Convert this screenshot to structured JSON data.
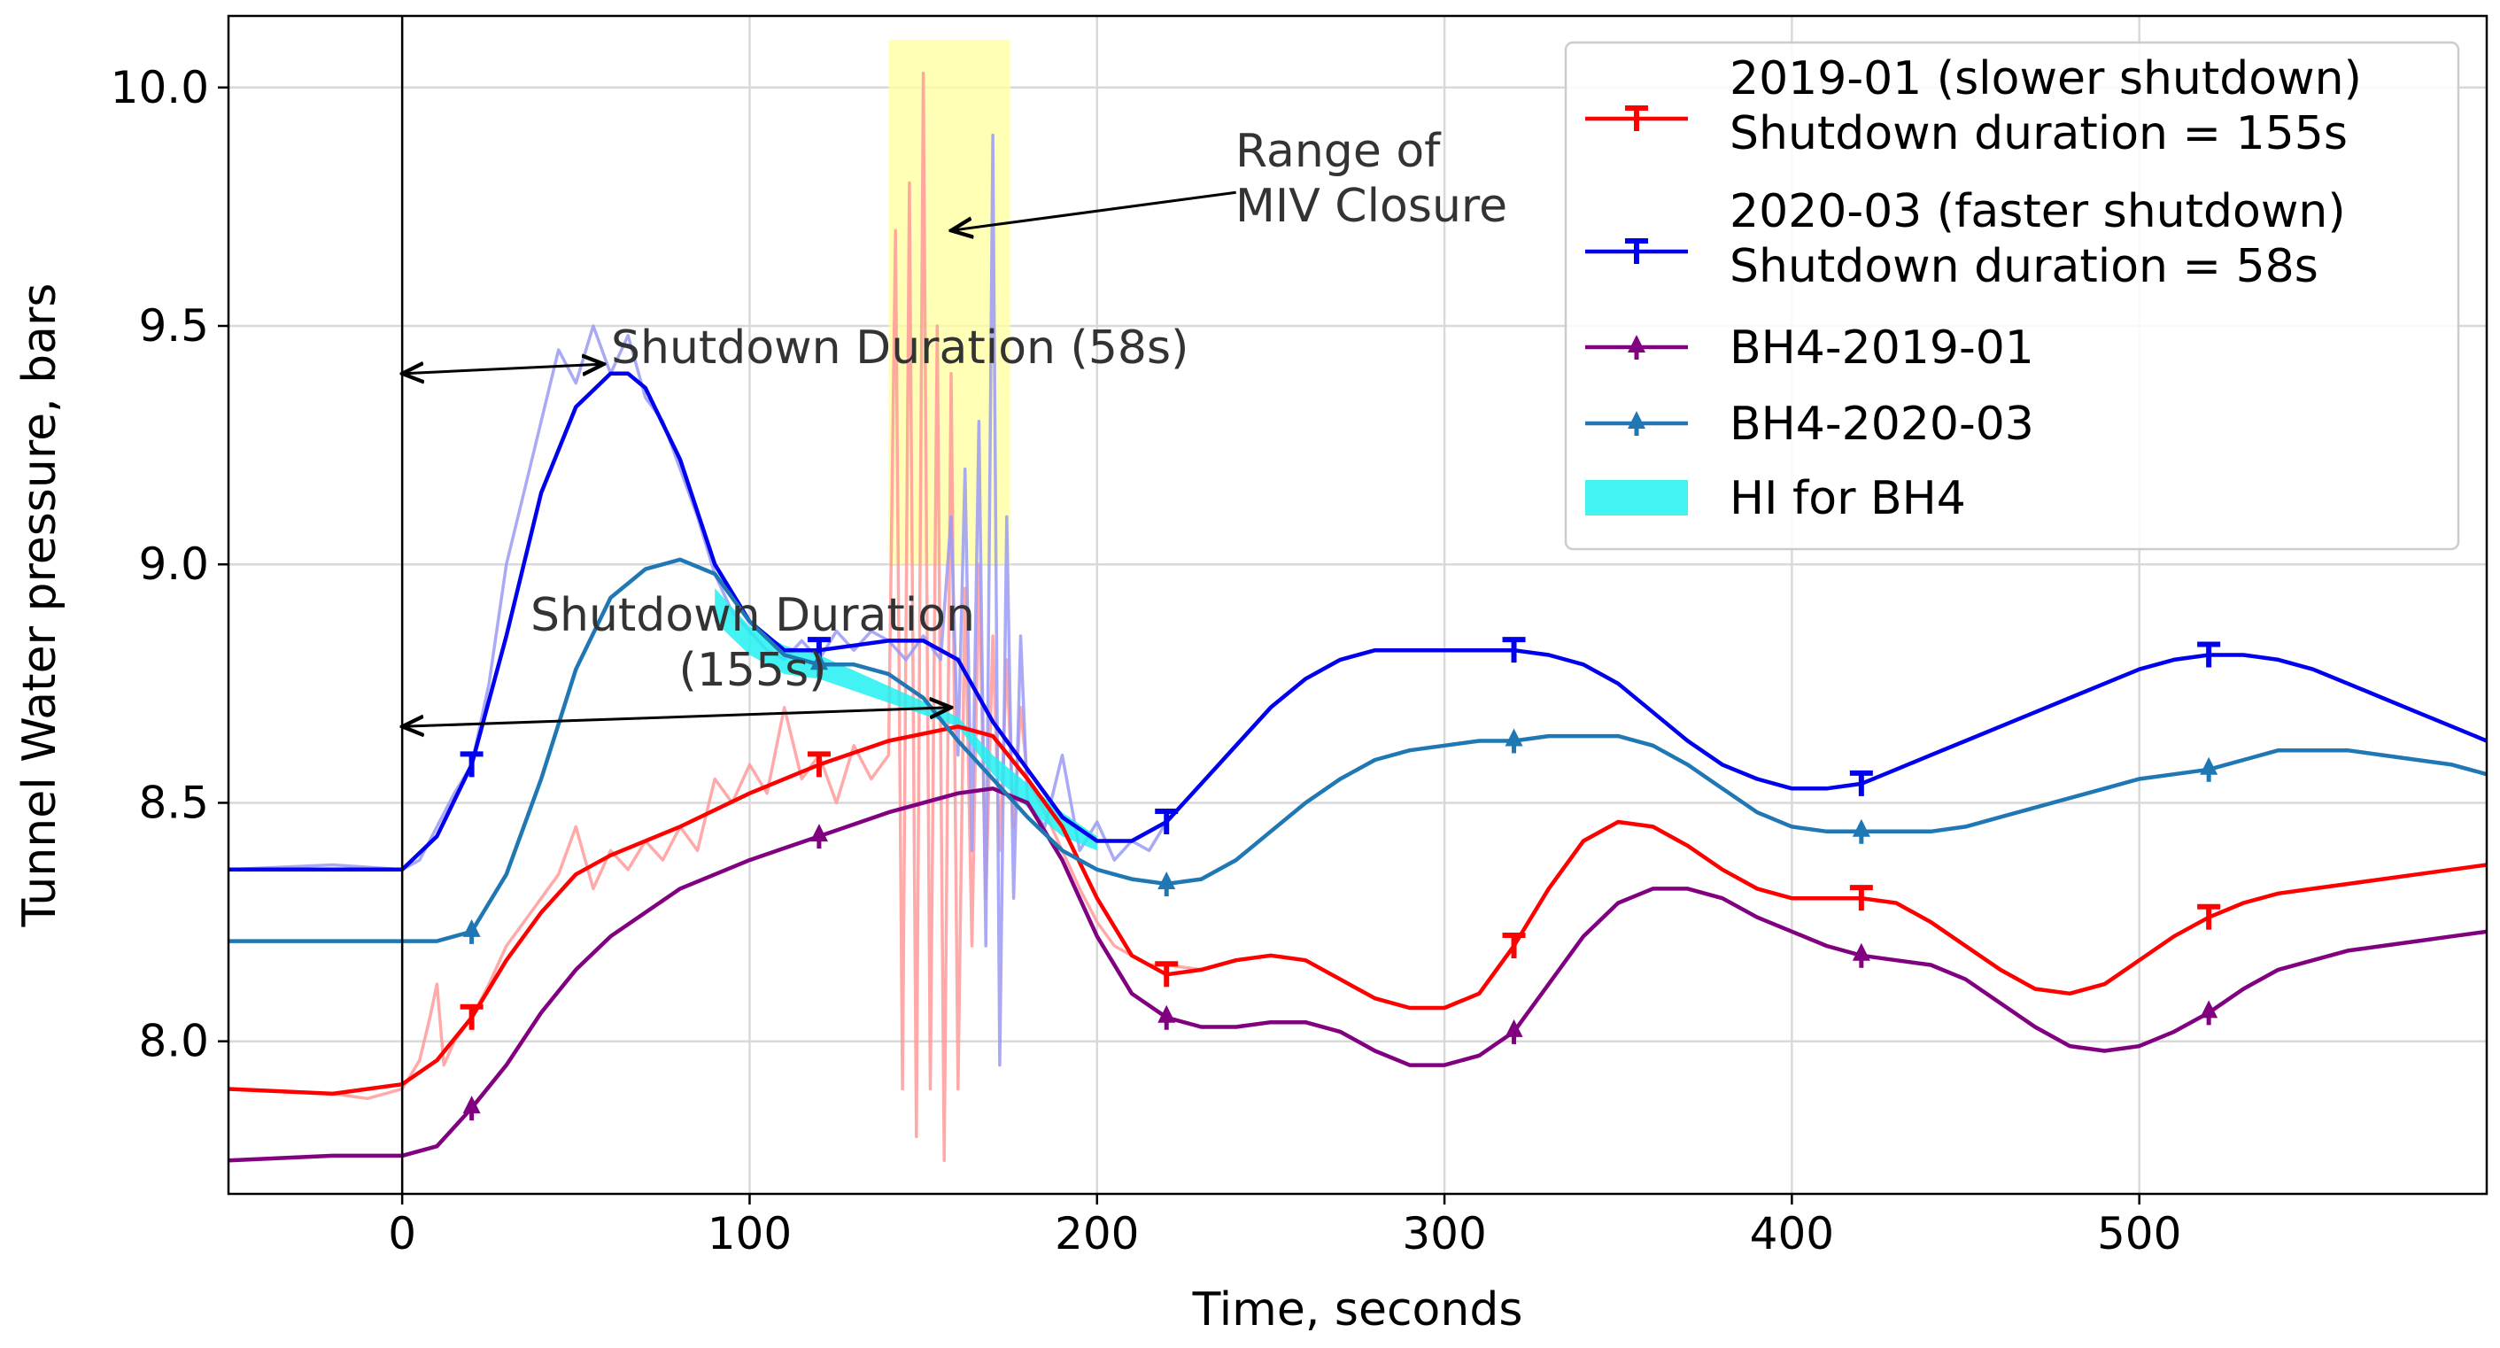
{
  "chart_data": {
    "type": "line",
    "xlabel": "Time, seconds",
    "ylabel": "Tunnel Water pressure, bars",
    "xlim": [
      -50,
      600
    ],
    "ylim": [
      7.68,
      10.15
    ],
    "x_ticks": [
      0,
      100,
      200,
      300,
      400,
      500
    ],
    "y_ticks": [
      8.0,
      8.5,
      9.0,
      9.5,
      10.0
    ],
    "y_tick_labels": [
      "8.0",
      "8.5",
      "9.0",
      "9.5",
      "10.0"
    ],
    "grid": true,
    "vertical_line_x": 0,
    "highlight_band": {
      "x": [
        140,
        175
      ],
      "y": [
        9.0,
        10.1
      ],
      "color": "#ffff9e"
    },
    "hi_band": {
      "x": [
        90,
        100,
        110,
        120,
        160,
        165,
        170,
        180,
        190,
        200
      ],
      "lower": [
        8.88,
        8.81,
        8.77,
        8.76,
        8.66,
        8.61,
        8.56,
        8.49,
        8.43,
        8.4
      ],
      "upper": [
        8.95,
        8.87,
        8.83,
        8.81,
        8.68,
        8.64,
        8.6,
        8.54,
        8.48,
        8.43
      ],
      "color": "#22f0f0"
    },
    "series": [
      {
        "name": "2019-01 (slower shutdown)",
        "name_line2": "Shutdown duration = 155s",
        "color": "#ff0000",
        "marker": "T",
        "x": [
          -50,
          -20,
          0,
          10,
          20,
          30,
          40,
          50,
          60,
          80,
          100,
          120,
          140,
          160,
          170,
          180,
          190,
          200,
          210,
          220,
          230,
          240,
          250,
          260,
          270,
          280,
          290,
          300,
          310,
          320,
          330,
          340,
          350,
          360,
          370,
          380,
          390,
          400,
          410,
          420,
          430,
          440,
          450,
          460,
          470,
          480,
          490,
          500,
          510,
          520,
          530,
          540,
          550,
          560,
          570,
          580,
          590,
          600
        ],
        "values": [
          7.9,
          7.89,
          7.91,
          7.96,
          8.05,
          8.17,
          8.27,
          8.35,
          8.39,
          8.45,
          8.52,
          8.58,
          8.63,
          8.66,
          8.64,
          8.55,
          8.45,
          8.3,
          8.18,
          8.14,
          8.15,
          8.17,
          8.18,
          8.17,
          8.13,
          8.09,
          8.07,
          8.07,
          8.1,
          8.2,
          8.32,
          8.42,
          8.46,
          8.45,
          8.41,
          8.36,
          8.32,
          8.3,
          8.3,
          8.3,
          8.29,
          8.25,
          8.2,
          8.15,
          8.11,
          8.1,
          8.12,
          8.17,
          8.22,
          8.26,
          8.29,
          8.31,
          8.32,
          8.33,
          8.34,
          8.35,
          8.36,
          8.37
        ],
        "markers_x": [
          20,
          120,
          220,
          320,
          420,
          520
        ]
      },
      {
        "name": "2020-03 (faster shutdown)",
        "name_line2": "Shutdown duration = 58s",
        "color": "#0000ee",
        "marker": "T",
        "x": [
          -50,
          -20,
          0,
          10,
          20,
          30,
          40,
          50,
          60,
          65,
          70,
          80,
          90,
          100,
          110,
          120,
          130,
          140,
          150,
          160,
          170,
          180,
          190,
          200,
          210,
          220,
          230,
          240,
          250,
          260,
          270,
          280,
          290,
          300,
          310,
          320,
          330,
          340,
          350,
          360,
          370,
          380,
          390,
          400,
          410,
          420,
          430,
          440,
          450,
          460,
          470,
          480,
          490,
          500,
          510,
          520,
          530,
          540,
          550,
          560,
          570,
          580,
          590,
          600
        ],
        "values": [
          8.36,
          8.36,
          8.36,
          8.43,
          8.58,
          8.85,
          9.15,
          9.33,
          9.4,
          9.4,
          9.37,
          9.22,
          9.0,
          8.88,
          8.82,
          8.82,
          8.83,
          8.84,
          8.84,
          8.8,
          8.67,
          8.57,
          8.47,
          8.42,
          8.42,
          8.46,
          8.54,
          8.62,
          8.7,
          8.76,
          8.8,
          8.82,
          8.82,
          8.82,
          8.82,
          8.82,
          8.81,
          8.79,
          8.75,
          8.69,
          8.63,
          8.58,
          8.55,
          8.53,
          8.53,
          8.54,
          8.57,
          8.6,
          8.63,
          8.66,
          8.69,
          8.72,
          8.75,
          8.78,
          8.8,
          8.81,
          8.81,
          8.8,
          8.78,
          8.75,
          8.72,
          8.69,
          8.66,
          8.63
        ],
        "markers_x": [
          20,
          120,
          220,
          320,
          420,
          520
        ]
      },
      {
        "name": "BH4-2019-01",
        "color": "#800080",
        "marker": "4",
        "x": [
          -50,
          -20,
          0,
          10,
          20,
          30,
          40,
          50,
          60,
          80,
          100,
          120,
          140,
          160,
          170,
          180,
          190,
          200,
          210,
          220,
          230,
          240,
          250,
          260,
          270,
          280,
          290,
          300,
          310,
          320,
          330,
          340,
          350,
          360,
          370,
          380,
          390,
          400,
          410,
          420,
          430,
          440,
          450,
          460,
          470,
          480,
          490,
          500,
          510,
          520,
          530,
          540,
          550,
          560,
          570,
          580,
          590,
          600
        ],
        "values": [
          7.75,
          7.76,
          7.76,
          7.78,
          7.86,
          7.95,
          8.06,
          8.15,
          8.22,
          8.32,
          8.38,
          8.43,
          8.48,
          8.52,
          8.53,
          8.5,
          8.38,
          8.22,
          8.1,
          8.05,
          8.03,
          8.03,
          8.04,
          8.04,
          8.02,
          7.98,
          7.95,
          7.95,
          7.97,
          8.02,
          8.12,
          8.22,
          8.29,
          8.32,
          8.32,
          8.3,
          8.26,
          8.23,
          8.2,
          8.18,
          8.17,
          8.16,
          8.13,
          8.08,
          8.03,
          7.99,
          7.98,
          7.99,
          8.02,
          8.06,
          8.11,
          8.15,
          8.17,
          8.19,
          8.2,
          8.21,
          8.22,
          8.23
        ],
        "markers_x": [
          20,
          120,
          220,
          320,
          420,
          520
        ]
      },
      {
        "name": "BH4-2020-03",
        "color": "#1f77b4",
        "marker": "4",
        "x": [
          -50,
          -20,
          0,
          10,
          20,
          30,
          40,
          50,
          60,
          70,
          80,
          90,
          100,
          110,
          120,
          130,
          140,
          150,
          160,
          170,
          180,
          190,
          200,
          210,
          220,
          230,
          240,
          250,
          260,
          270,
          280,
          290,
          300,
          310,
          320,
          330,
          340,
          350,
          360,
          370,
          380,
          390,
          400,
          410,
          420,
          430,
          440,
          450,
          460,
          470,
          480,
          490,
          500,
          510,
          520,
          530,
          540,
          550,
          560,
          570,
          580,
          590,
          600
        ],
        "values": [
          8.21,
          8.21,
          8.21,
          8.21,
          8.23,
          8.35,
          8.55,
          8.78,
          8.93,
          8.99,
          9.01,
          8.98,
          8.88,
          8.81,
          8.79,
          8.79,
          8.77,
          8.72,
          8.63,
          8.55,
          8.47,
          8.4,
          8.36,
          8.34,
          8.33,
          8.34,
          8.38,
          8.44,
          8.5,
          8.55,
          8.59,
          8.61,
          8.62,
          8.63,
          8.63,
          8.64,
          8.64,
          8.64,
          8.62,
          8.58,
          8.53,
          8.48,
          8.45,
          8.44,
          8.44,
          8.44,
          8.44,
          8.45,
          8.47,
          8.49,
          8.51,
          8.53,
          8.55,
          8.56,
          8.57,
          8.59,
          8.61,
          8.61,
          8.61,
          8.6,
          8.59,
          8.58,
          8.56
        ],
        "markers_x": [
          20,
          120,
          220,
          320,
          420,
          520
        ]
      }
    ],
    "raw_traces": [
      {
        "name": "2019-01 raw",
        "color": "#ff9a9a",
        "x": [
          -50,
          -20,
          -10,
          0,
          5,
          8,
          10,
          12,
          15,
          20,
          25,
          30,
          35,
          40,
          45,
          50,
          55,
          60,
          65,
          70,
          75,
          80,
          85,
          90,
          95,
          100,
          105,
          110,
          115,
          120,
          125,
          130,
          135,
          140,
          142,
          144,
          146,
          148,
          150,
          152,
          154,
          156,
          158,
          160,
          162,
          164,
          166,
          168,
          170,
          172,
          174,
          176,
          178,
          180,
          185,
          190,
          195,
          200,
          205,
          210,
          215,
          220,
          230,
          240,
          250,
          260,
          270,
          280,
          290,
          300,
          310,
          320,
          330,
          340,
          350,
          360,
          370,
          380,
          390,
          400,
          410,
          420,
          430,
          440,
          450,
          460,
          470,
          480,
          490,
          500,
          510,
          520,
          530,
          540,
          550,
          560,
          570,
          580,
          590,
          600
        ],
        "values": [
          7.9,
          7.89,
          7.88,
          7.9,
          7.96,
          8.05,
          8.12,
          7.95,
          8.0,
          8.05,
          8.12,
          8.2,
          8.25,
          8.3,
          8.35,
          8.45,
          8.32,
          8.4,
          8.36,
          8.42,
          8.38,
          8.45,
          8.4,
          8.55,
          8.5,
          8.58,
          8.52,
          8.7,
          8.55,
          8.6,
          8.5,
          8.62,
          8.55,
          8.6,
          9.7,
          7.9,
          9.8,
          7.8,
          10.03,
          7.9,
          9.5,
          7.75,
          9.4,
          7.9,
          8.95,
          8.2,
          9.0,
          8.3,
          8.85,
          8.4,
          8.8,
          8.45,
          8.7,
          8.55,
          8.48,
          8.4,
          8.32,
          8.25,
          8.2,
          8.18,
          8.16,
          8.16,
          8.15,
          8.17,
          8.18,
          8.17,
          8.13,
          8.09,
          8.07,
          8.07,
          8.1,
          8.2,
          8.32,
          8.42,
          8.46,
          8.45,
          8.41,
          8.36,
          8.32,
          8.3,
          8.3,
          8.3,
          8.29,
          8.25,
          8.2,
          8.15,
          8.11,
          8.1,
          8.12,
          8.17,
          8.22,
          8.26,
          8.29,
          8.31,
          8.32,
          8.33,
          8.34,
          8.35,
          8.36,
          8.37
        ]
      },
      {
        "name": "2020-03 raw",
        "color": "#9a9af5",
        "x": [
          -50,
          -20,
          0,
          5,
          10,
          15,
          20,
          25,
          30,
          35,
          40,
          45,
          50,
          55,
          60,
          65,
          70,
          75,
          80,
          85,
          90,
          95,
          100,
          105,
          110,
          115,
          120,
          125,
          130,
          135,
          140,
          145,
          150,
          155,
          158,
          160,
          162,
          164,
          166,
          168,
          170,
          172,
          174,
          176,
          178,
          180,
          185,
          190,
          195,
          200,
          205,
          210,
          215,
          220,
          230,
          240,
          250,
          260,
          270,
          280,
          290,
          300,
          310,
          320,
          330,
          340,
          350,
          360,
          370,
          380,
          390,
          400,
          410,
          420,
          430,
          440,
          450,
          460,
          470,
          480,
          490,
          500,
          510,
          520,
          530,
          540,
          550,
          560,
          570,
          580,
          590,
          600
        ],
        "values": [
          8.36,
          8.37,
          8.36,
          8.38,
          8.45,
          8.52,
          8.58,
          8.75,
          9.0,
          9.15,
          9.3,
          9.45,
          9.38,
          9.5,
          9.4,
          9.48,
          9.35,
          9.3,
          9.2,
          9.1,
          8.98,
          8.9,
          8.86,
          8.82,
          8.8,
          8.84,
          8.8,
          8.86,
          8.82,
          8.86,
          8.84,
          8.8,
          8.85,
          8.8,
          9.1,
          8.6,
          9.2,
          8.4,
          9.3,
          8.2,
          9.9,
          7.95,
          9.1,
          8.3,
          8.85,
          8.5,
          8.45,
          8.6,
          8.4,
          8.46,
          8.38,
          8.42,
          8.4,
          8.46,
          8.54,
          8.62,
          8.7,
          8.76,
          8.8,
          8.82,
          8.82,
          8.82,
          8.82,
          8.82,
          8.81,
          8.79,
          8.75,
          8.69,
          8.63,
          8.58,
          8.55,
          8.53,
          8.53,
          8.54,
          8.57,
          8.6,
          8.63,
          8.66,
          8.69,
          8.72,
          8.75,
          8.78,
          8.8,
          8.81,
          8.81,
          8.8,
          8.78,
          8.75,
          8.72,
          8.69,
          8.66,
          8.63
        ]
      }
    ],
    "annotations": [
      {
        "text_lines": [
          "Range of",
          "MIV Closure"
        ],
        "arrow_to": [
          158,
          9.7
        ],
        "arrow_from": [
          240,
          9.78
        ]
      },
      {
        "text_lines": [
          "Shutdown Duration (58s)"
        ],
        "arrow_from": [
          0,
          9.4
        ],
        "arrow_to": [
          58,
          9.42
        ]
      },
      {
        "text_lines": [
          "Shutdown Duration",
          "(155s)"
        ],
        "arrow_from": [
          0,
          8.66
        ],
        "arrow_to": [
          158,
          8.7
        ]
      }
    ],
    "legend": {
      "placement": "top-right",
      "hi_label": "HI for BH4"
    }
  }
}
